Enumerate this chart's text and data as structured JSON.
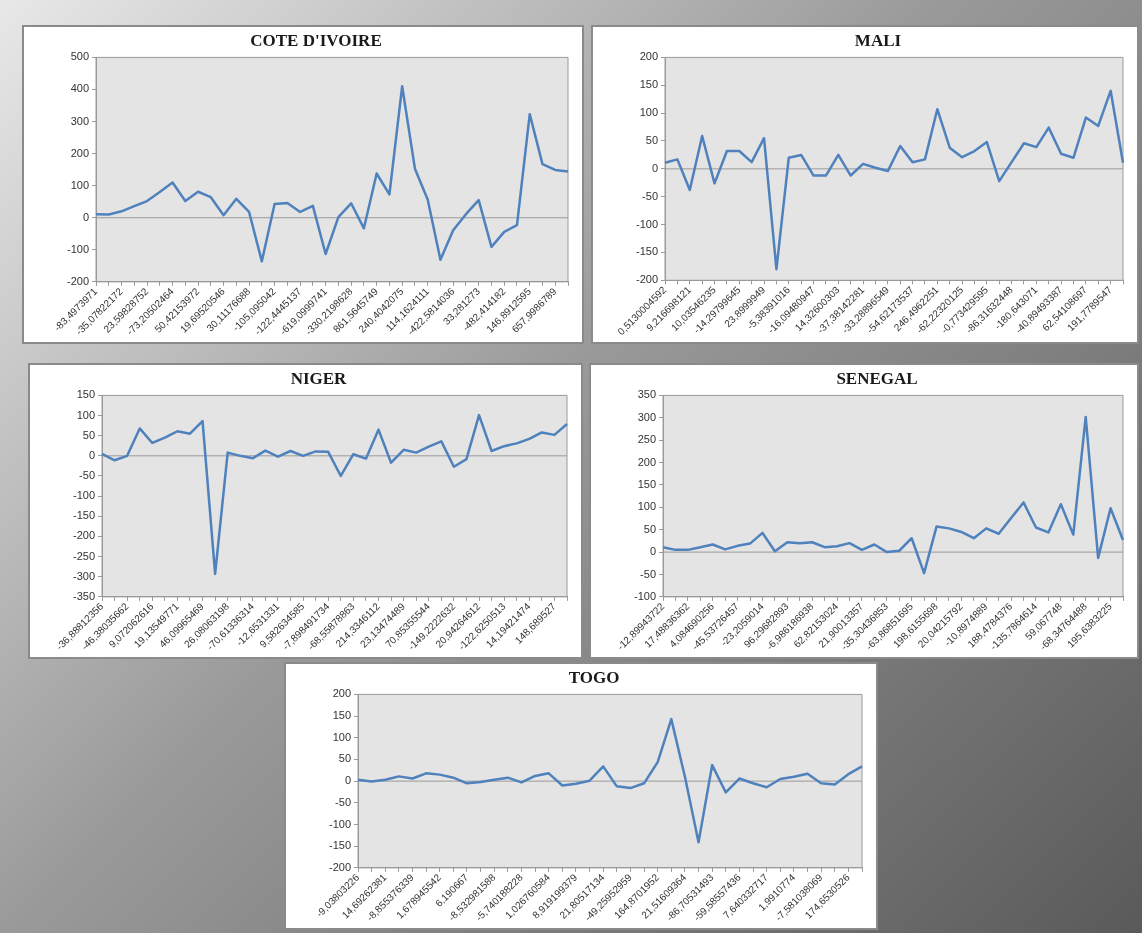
{
  "chart_data": [
    {
      "type": "line",
      "title": "COTE D'IVOIRE",
      "color": "#4f81bd",
      "marker": "none",
      "legend": false,
      "grid": false,
      "categories": [
        "-83,4973971",
        null,
        "-35,07822172",
        null,
        "23,59828752",
        null,
        "-73,20502464",
        null,
        "50,42153972",
        null,
        "19,69520546",
        null,
        "30,11176688",
        null,
        "-105,095042",
        null,
        "-122,4445137",
        null,
        "-619,0999741",
        null,
        "-330,2198628",
        null,
        "861,5645749",
        null,
        "240,4042075",
        null,
        "114,1624111",
        null,
        "-422,5814036",
        null,
        "33,281273",
        null,
        "-482,414182",
        null,
        "146,8912595",
        null,
        "657,9986789",
        null
      ],
      "values": [
        11,
        10,
        20,
        36,
        52,
        80,
        110,
        52,
        81,
        64,
        8,
        59,
        18,
        -136,
        43,
        46,
        18,
        37,
        -113,
        2,
        45,
        -33,
        138,
        73,
        410,
        153,
        57,
        -131,
        -39,
        11,
        55,
        -91,
        -44,
        -23,
        323,
        167,
        149,
        144
      ],
      "ylim": [
        -200,
        500
      ],
      "yticks": [
        -200,
        -100,
        0,
        100,
        200,
        300,
        400,
        500
      ],
      "ref_lines": [
        {
          "axis": "y",
          "value": 0
        }
      ]
    },
    {
      "type": "line",
      "title": "MALI",
      "color": "#4f81bd",
      "marker": "none",
      "legend": false,
      "grid": false,
      "categories": [
        "0,5130004592",
        null,
        "9,216698121",
        null,
        "10,03546235",
        null,
        "-14,29799645",
        null,
        "23,8999949",
        null,
        "-5,38391016",
        null,
        "-16,09480947",
        null,
        "14,32600303",
        null,
        "-37,38142281",
        null,
        "-33,28896549",
        null,
        "-54,62173537",
        null,
        "246,4962251",
        null,
        "-62,22320125",
        null,
        "-0,773429595",
        null,
        "-86,31632448",
        null,
        "-180,643071",
        null,
        "-40,89493387",
        null,
        "62,54108697",
        null,
        "191,7789547",
        null
      ],
      "values": [
        11,
        17,
        -38,
        59,
        -26,
        32,
        32,
        12,
        55,
        -180,
        20,
        25,
        -12,
        -12,
        25,
        -12,
        9,
        2,
        -4,
        41,
        12,
        17,
        107,
        38,
        21,
        32,
        48,
        -22,
        12,
        46,
        39,
        74,
        27,
        20,
        92,
        77,
        140,
        11
      ],
      "ylim": [
        -200,
        200
      ],
      "yticks": [
        -200,
        -150,
        -100,
        -50,
        0,
        50,
        100,
        150,
        200
      ],
      "ref_lines": [
        {
          "axis": "y",
          "value": 0
        }
      ]
    },
    {
      "type": "line",
      "title": "NIGER",
      "color": "#4f81bd",
      "marker": "none",
      "legend": false,
      "grid": false,
      "categories": [
        "-36,88812356",
        null,
        "-46,38035662",
        null,
        "9,072062616",
        null,
        "19,13549771",
        null,
        "46,09965469",
        null,
        "26,08063198",
        null,
        "-70,61336314",
        null,
        "-12,6531331",
        null,
        "9,582634585",
        null,
        "-7,898491734",
        null,
        "-68,55878863",
        null,
        "214,3346112",
        null,
        "23,13474489",
        null,
        "70,85355544",
        null,
        "-149,2222632",
        null,
        "20,94264612",
        null,
        "-122,6250513",
        null,
        "14,19421474",
        null,
        "148,689527",
        null
      ],
      "values": [
        5,
        -11,
        0,
        68,
        32,
        45,
        61,
        55,
        86,
        -293,
        8,
        0,
        -6,
        13,
        -2,
        12,
        0,
        11,
        10,
        -50,
        4,
        -7,
        65,
        -17,
        15,
        8,
        23,
        36,
        -27,
        -8,
        101,
        12,
        24,
        31,
        42,
        58,
        52,
        79
      ],
      "ylim": [
        -350,
        150
      ],
      "yticks": [
        -350,
        -300,
        -250,
        -200,
        -150,
        -100,
        -50,
        0,
        50,
        100,
        150
      ],
      "ref_lines": [
        {
          "axis": "y",
          "value": 0
        }
      ]
    },
    {
      "type": "line",
      "title": "SENEGAL",
      "color": "#4f81bd",
      "marker": "none",
      "legend": false,
      "grid": false,
      "categories": [
        "-12,89943722",
        null,
        "17,48836362",
        null,
        "4,084690256",
        null,
        "-45,53726457",
        null,
        "-23,2059014",
        null,
        "96,29682893",
        null,
        "-6,986186938",
        null,
        "62,82153024",
        null,
        "21,90013357",
        null,
        "-35,30436853",
        null,
        "-63,86851695",
        null,
        "198,6155698",
        null,
        "20,04215792",
        null,
        "-10,8974889",
        null,
        "188,4784376",
        null,
        "-135,7864614",
        null,
        "59,067748",
        null,
        "-68,34764488",
        null,
        "195,6383225",
        null
      ],
      "values": [
        11,
        5,
        5,
        11,
        17,
        6,
        14,
        19,
        43,
        2,
        22,
        20,
        22,
        11,
        13,
        20,
        5,
        17,
        0,
        3,
        31,
        -47,
        57,
        53,
        45,
        31,
        53,
        41,
        76,
        111,
        55,
        44,
        107,
        39,
        302,
        -13,
        98,
        27
      ],
      "ylim": [
        -100,
        350
      ],
      "yticks": [
        -100,
        -50,
        0,
        50,
        100,
        150,
        200,
        250,
        300,
        350
      ],
      "ref_lines": [
        {
          "axis": "y",
          "value": 0
        }
      ]
    },
    {
      "type": "line",
      "title": "TOGO",
      "color": "#4f81bd",
      "marker": "none",
      "legend": false,
      "grid": false,
      "categories": [
        "-9,03803226",
        null,
        "14,69262381",
        null,
        "-8,855376339",
        null,
        "1,678945542",
        null,
        "6,190667",
        null,
        "-8,532981588",
        null,
        "-5,740188228",
        null,
        "1,026760584",
        null,
        "8,919199379",
        null,
        "21,80517134",
        null,
        "-49,25952959",
        null,
        "164,8701952",
        null,
        "21,51609364",
        null,
        "-86,70531493",
        null,
        "-59,58557436",
        null,
        "7,640332717",
        null,
        "1,9910774",
        null,
        "-7,581038069",
        null,
        "174,6530526",
        null
      ],
      "values": [
        3,
        -1,
        3,
        11,
        6,
        18,
        15,
        8,
        -5,
        -2,
        3,
        8,
        -3,
        12,
        18,
        -10,
        -6,
        1,
        34,
        -12,
        -16,
        -5,
        44,
        143,
        10,
        -141,
        37,
        -26,
        6,
        -5,
        -14,
        5,
        10,
        17,
        -5,
        -8,
        16,
        34
      ],
      "ylim": [
        -200,
        200
      ],
      "yticks": [
        -200,
        -150,
        -100,
        -50,
        0,
        50,
        100,
        150,
        200
      ],
      "ref_lines": [
        {
          "axis": "y",
          "value": 0
        }
      ]
    }
  ]
}
